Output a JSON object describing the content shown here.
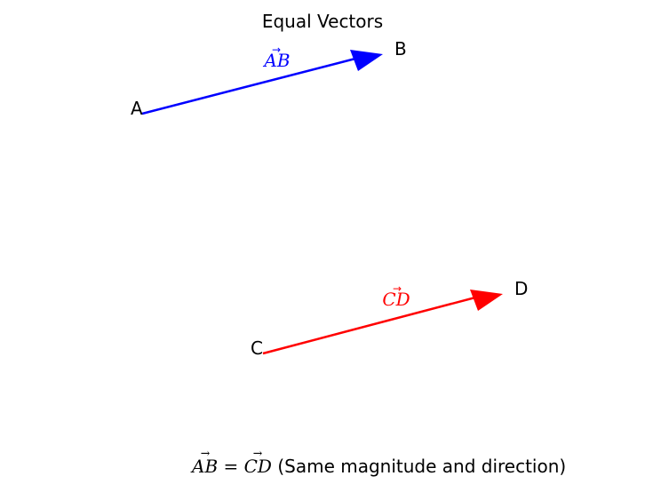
{
  "title": "Equal Vectors",
  "colors": {
    "vector_ab": "#0000ff",
    "vector_cd": "#ff0000",
    "text": "#000000"
  },
  "points": [
    {
      "label": "A"
    },
    {
      "label": "B"
    },
    {
      "label": "C"
    },
    {
      "label": "D"
    }
  ],
  "vectors": [
    {
      "from": "A",
      "to": "B",
      "label": "AB",
      "color": "#0000ff"
    },
    {
      "from": "C",
      "to": "D",
      "label": "CD",
      "color": "#ff0000"
    }
  ],
  "caption": {
    "left": "AB",
    "equals": "=",
    "right": "CD",
    "text": "(Same magnitude and direction)"
  }
}
